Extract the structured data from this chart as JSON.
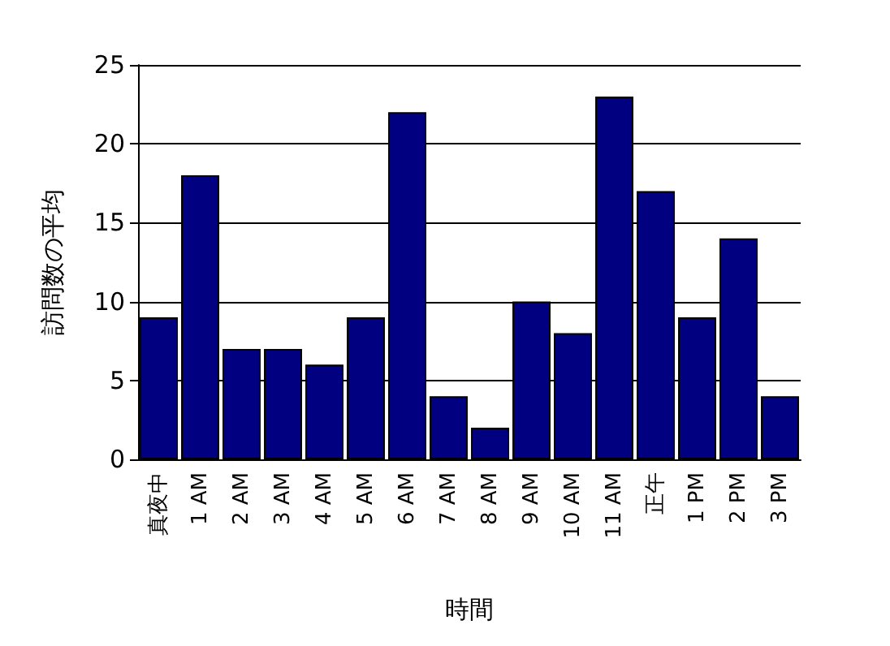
{
  "chart_data": {
    "type": "bar",
    "xlabel": "時間",
    "ylabel": "訪問数の平均",
    "categories": [
      "真夜中",
      "1 AM",
      "2 AM",
      "3 AM",
      "4 AM",
      "5 AM",
      "6 AM",
      "7 AM",
      "8 AM",
      "9 AM",
      "10 AM",
      "11 AM",
      "正午",
      "1 PM",
      "2 PM",
      "3 PM"
    ],
    "values": [
      9,
      18,
      7,
      7,
      6,
      9,
      22,
      4,
      2,
      10,
      8,
      23,
      17,
      9,
      14,
      4
    ],
    "color": "#000080",
    "ylim": [
      0,
      25
    ],
    "yticks": [
      0,
      5,
      10,
      15,
      20,
      25
    ],
    "grid": "y"
  }
}
